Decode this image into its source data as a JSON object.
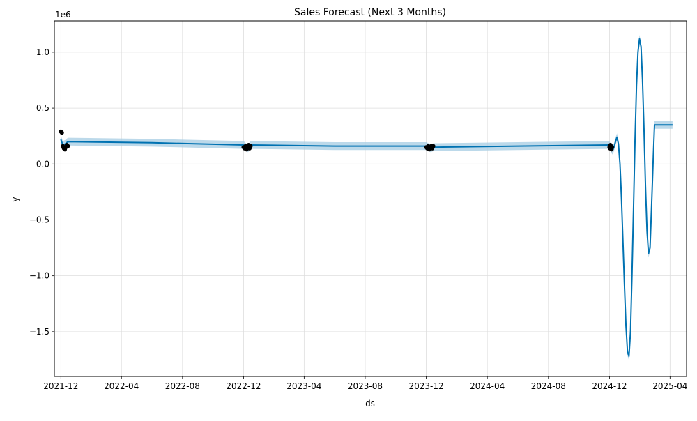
{
  "chart_data": {
    "type": "line",
    "title": "Sales Forecast (Next 3 Months)",
    "xlabel": "ds",
    "ylabel": "y",
    "y_offset_label": "1e6",
    "xlim": [
      "2021-11-18",
      "2025-05-04"
    ],
    "ylim": [
      -1.9,
      1.28
    ],
    "grid": true,
    "x_ticks": [
      {
        "date": "2021-12-01",
        "label": "2021-12"
      },
      {
        "date": "2022-04-01",
        "label": "2022-04"
      },
      {
        "date": "2022-08-01",
        "label": "2022-08"
      },
      {
        "date": "2022-12-01",
        "label": "2022-12"
      },
      {
        "date": "2023-04-01",
        "label": "2023-04"
      },
      {
        "date": "2023-08-01",
        "label": "2023-08"
      },
      {
        "date": "2023-12-01",
        "label": "2023-12"
      },
      {
        "date": "2024-04-01",
        "label": "2024-04"
      },
      {
        "date": "2024-08-01",
        "label": "2024-08"
      },
      {
        "date": "2024-12-01",
        "label": "2024-12"
      },
      {
        "date": "2025-04-01",
        "label": "2025-04"
      }
    ],
    "y_ticks": [
      {
        "value": 1.0,
        "label": "1.0"
      },
      {
        "value": 0.5,
        "label": "0.5"
      },
      {
        "value": 0.0,
        "label": "0.0"
      },
      {
        "value": -0.5,
        "label": "−0.5"
      },
      {
        "value": -1.0,
        "label": "−1.0"
      },
      {
        "value": -1.5,
        "label": "−1.5"
      }
    ],
    "series": [
      {
        "kind": "observed",
        "color": "#000000",
        "x": [
          "2021-12-01",
          "2021-12-03",
          "2021-12-05",
          "2021-12-07",
          "2021-12-09",
          "2021-12-11",
          "2021-12-13",
          "2021-12-15",
          "2022-12-01",
          "2022-12-03",
          "2022-12-05",
          "2022-12-07",
          "2022-12-09",
          "2022-12-11",
          "2022-12-13",
          "2022-12-15",
          "2023-12-01",
          "2023-12-03",
          "2023-12-05",
          "2023-12-07",
          "2023-12-09",
          "2023-12-11",
          "2023-12-13",
          "2023-12-15",
          "2024-12-01",
          "2024-12-02",
          "2024-12-03",
          "2024-12-04",
          "2024-12-05",
          "2024-12-06"
        ],
        "y": [
          0.29,
          0.28,
          0.16,
          0.14,
          0.13,
          0.15,
          0.17,
          0.16,
          0.15,
          0.14,
          0.16,
          0.13,
          0.15,
          0.17,
          0.14,
          0.16,
          0.15,
          0.14,
          0.16,
          0.13,
          0.15,
          0.16,
          0.14,
          0.16,
          0.15,
          0.14,
          0.17,
          0.16,
          0.13,
          0.15
        ]
      },
      {
        "kind": "forecast",
        "color": "#0072B2",
        "band_color": "#a6cce3",
        "x": [
          "2021-12-01",
          "2021-12-05",
          "2021-12-10",
          "2021-12-15",
          "2022-06-01",
          "2022-12-01",
          "2022-12-06",
          "2022-12-10",
          "2022-12-15",
          "2023-06-01",
          "2023-12-01",
          "2023-12-06",
          "2023-12-10",
          "2023-12-15",
          "2024-06-01",
          "2024-12-01",
          "2024-12-04",
          "2024-12-07",
          "2024-12-10",
          "2024-12-13",
          "2024-12-16",
          "2024-12-19",
          "2024-12-22",
          "2024-12-25",
          "2024-12-28",
          "2024-12-31",
          "2025-01-03",
          "2025-01-06",
          "2025-01-09",
          "2025-01-12",
          "2025-01-15",
          "2025-01-18",
          "2025-01-21",
          "2025-01-24",
          "2025-01-27",
          "2025-01-30",
          "2025-02-02",
          "2025-02-05",
          "2025-02-08",
          "2025-02-11",
          "2025-02-14",
          "2025-02-17",
          "2025-02-20",
          "2025-02-23",
          "2025-02-26",
          "2025-03-01",
          "2025-03-04",
          "2025-03-07",
          "2025-03-10",
          "2025-03-13",
          "2025-03-16",
          "2025-03-19",
          "2025-03-22",
          "2025-03-25",
          "2025-03-28",
          "2025-03-31",
          "2025-04-03",
          "2025-04-06"
        ],
        "y": [
          0.22,
          0.17,
          0.18,
          0.2,
          0.19,
          0.17,
          0.15,
          0.14,
          0.17,
          0.16,
          0.16,
          0.15,
          0.14,
          0.15,
          0.16,
          0.17,
          0.14,
          0.12,
          0.15,
          0.2,
          0.24,
          0.18,
          0.0,
          -0.3,
          -0.7,
          -1.1,
          -1.45,
          -1.68,
          -1.72,
          -1.5,
          -1.0,
          -0.4,
          0.2,
          0.7,
          1.0,
          1.12,
          1.05,
          0.75,
          0.3,
          -0.2,
          -0.6,
          -0.8,
          -0.75,
          -0.4,
          0.0,
          0.35,
          0.35,
          0.35,
          0.35,
          0.35,
          0.35,
          0.35,
          0.35,
          0.35,
          0.35,
          0.35,
          0.35,
          0.35
        ],
        "band_halfwidth": 0.035
      }
    ]
  }
}
